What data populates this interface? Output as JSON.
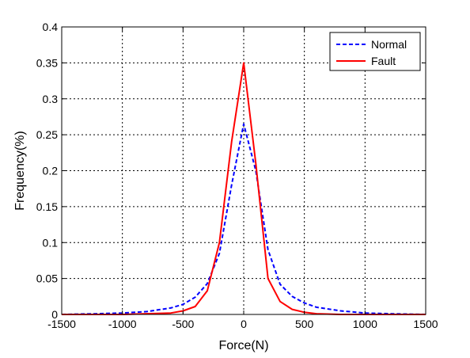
{
  "chart_data": {
    "type": "line",
    "title": "",
    "xlabel": "Force(N)",
    "ylabel": "Frequency(%)",
    "xlim": [
      -1500,
      1500
    ],
    "ylim": [
      0,
      0.4
    ],
    "xticks": [
      -1500,
      -1000,
      -500,
      0,
      500,
      1000,
      1500
    ],
    "yticks": [
      0,
      0.05,
      0.1,
      0.15,
      0.2,
      0.25,
      0.3,
      0.35,
      0.4
    ],
    "xtick_labels": [
      "-1500",
      "-1000",
      "-500",
      "0",
      "500",
      "1000",
      "1500"
    ],
    "ytick_labels": [
      "0",
      "0.05",
      "0.1",
      "0.15",
      "0.2",
      "0.25",
      "0.3",
      "0.35",
      "0.4"
    ],
    "grid": true,
    "legend_position": "top-right",
    "series": [
      {
        "name": "Normal",
        "color": "#0000ff",
        "style": "dashed",
        "x": [
          -1500,
          -1200,
          -1000,
          -800,
          -600,
          -500,
          -400,
          -300,
          -200,
          -100,
          0,
          100,
          200,
          300,
          400,
          500,
          600,
          800,
          1000,
          1200,
          1500
        ],
        "y": [
          0,
          0.001,
          0.002,
          0.004,
          0.009,
          0.014,
          0.024,
          0.043,
          0.085,
          0.18,
          0.265,
          0.2,
          0.09,
          0.042,
          0.025,
          0.016,
          0.01,
          0.005,
          0.002,
          0.001,
          0
        ]
      },
      {
        "name": "Fault",
        "color": "#ff0000",
        "style": "solid",
        "x": [
          -1500,
          -1000,
          -800,
          -600,
          -500,
          -400,
          -300,
          -200,
          -100,
          0,
          100,
          200,
          300,
          400,
          500,
          600,
          800,
          1000,
          1200,
          1500
        ],
        "y": [
          0,
          0,
          0.001,
          0.002,
          0.005,
          0.011,
          0.033,
          0.1,
          0.24,
          0.35,
          0.21,
          0.05,
          0.018,
          0.007,
          0.003,
          0.001,
          0,
          0,
          0,
          0
        ]
      }
    ]
  }
}
